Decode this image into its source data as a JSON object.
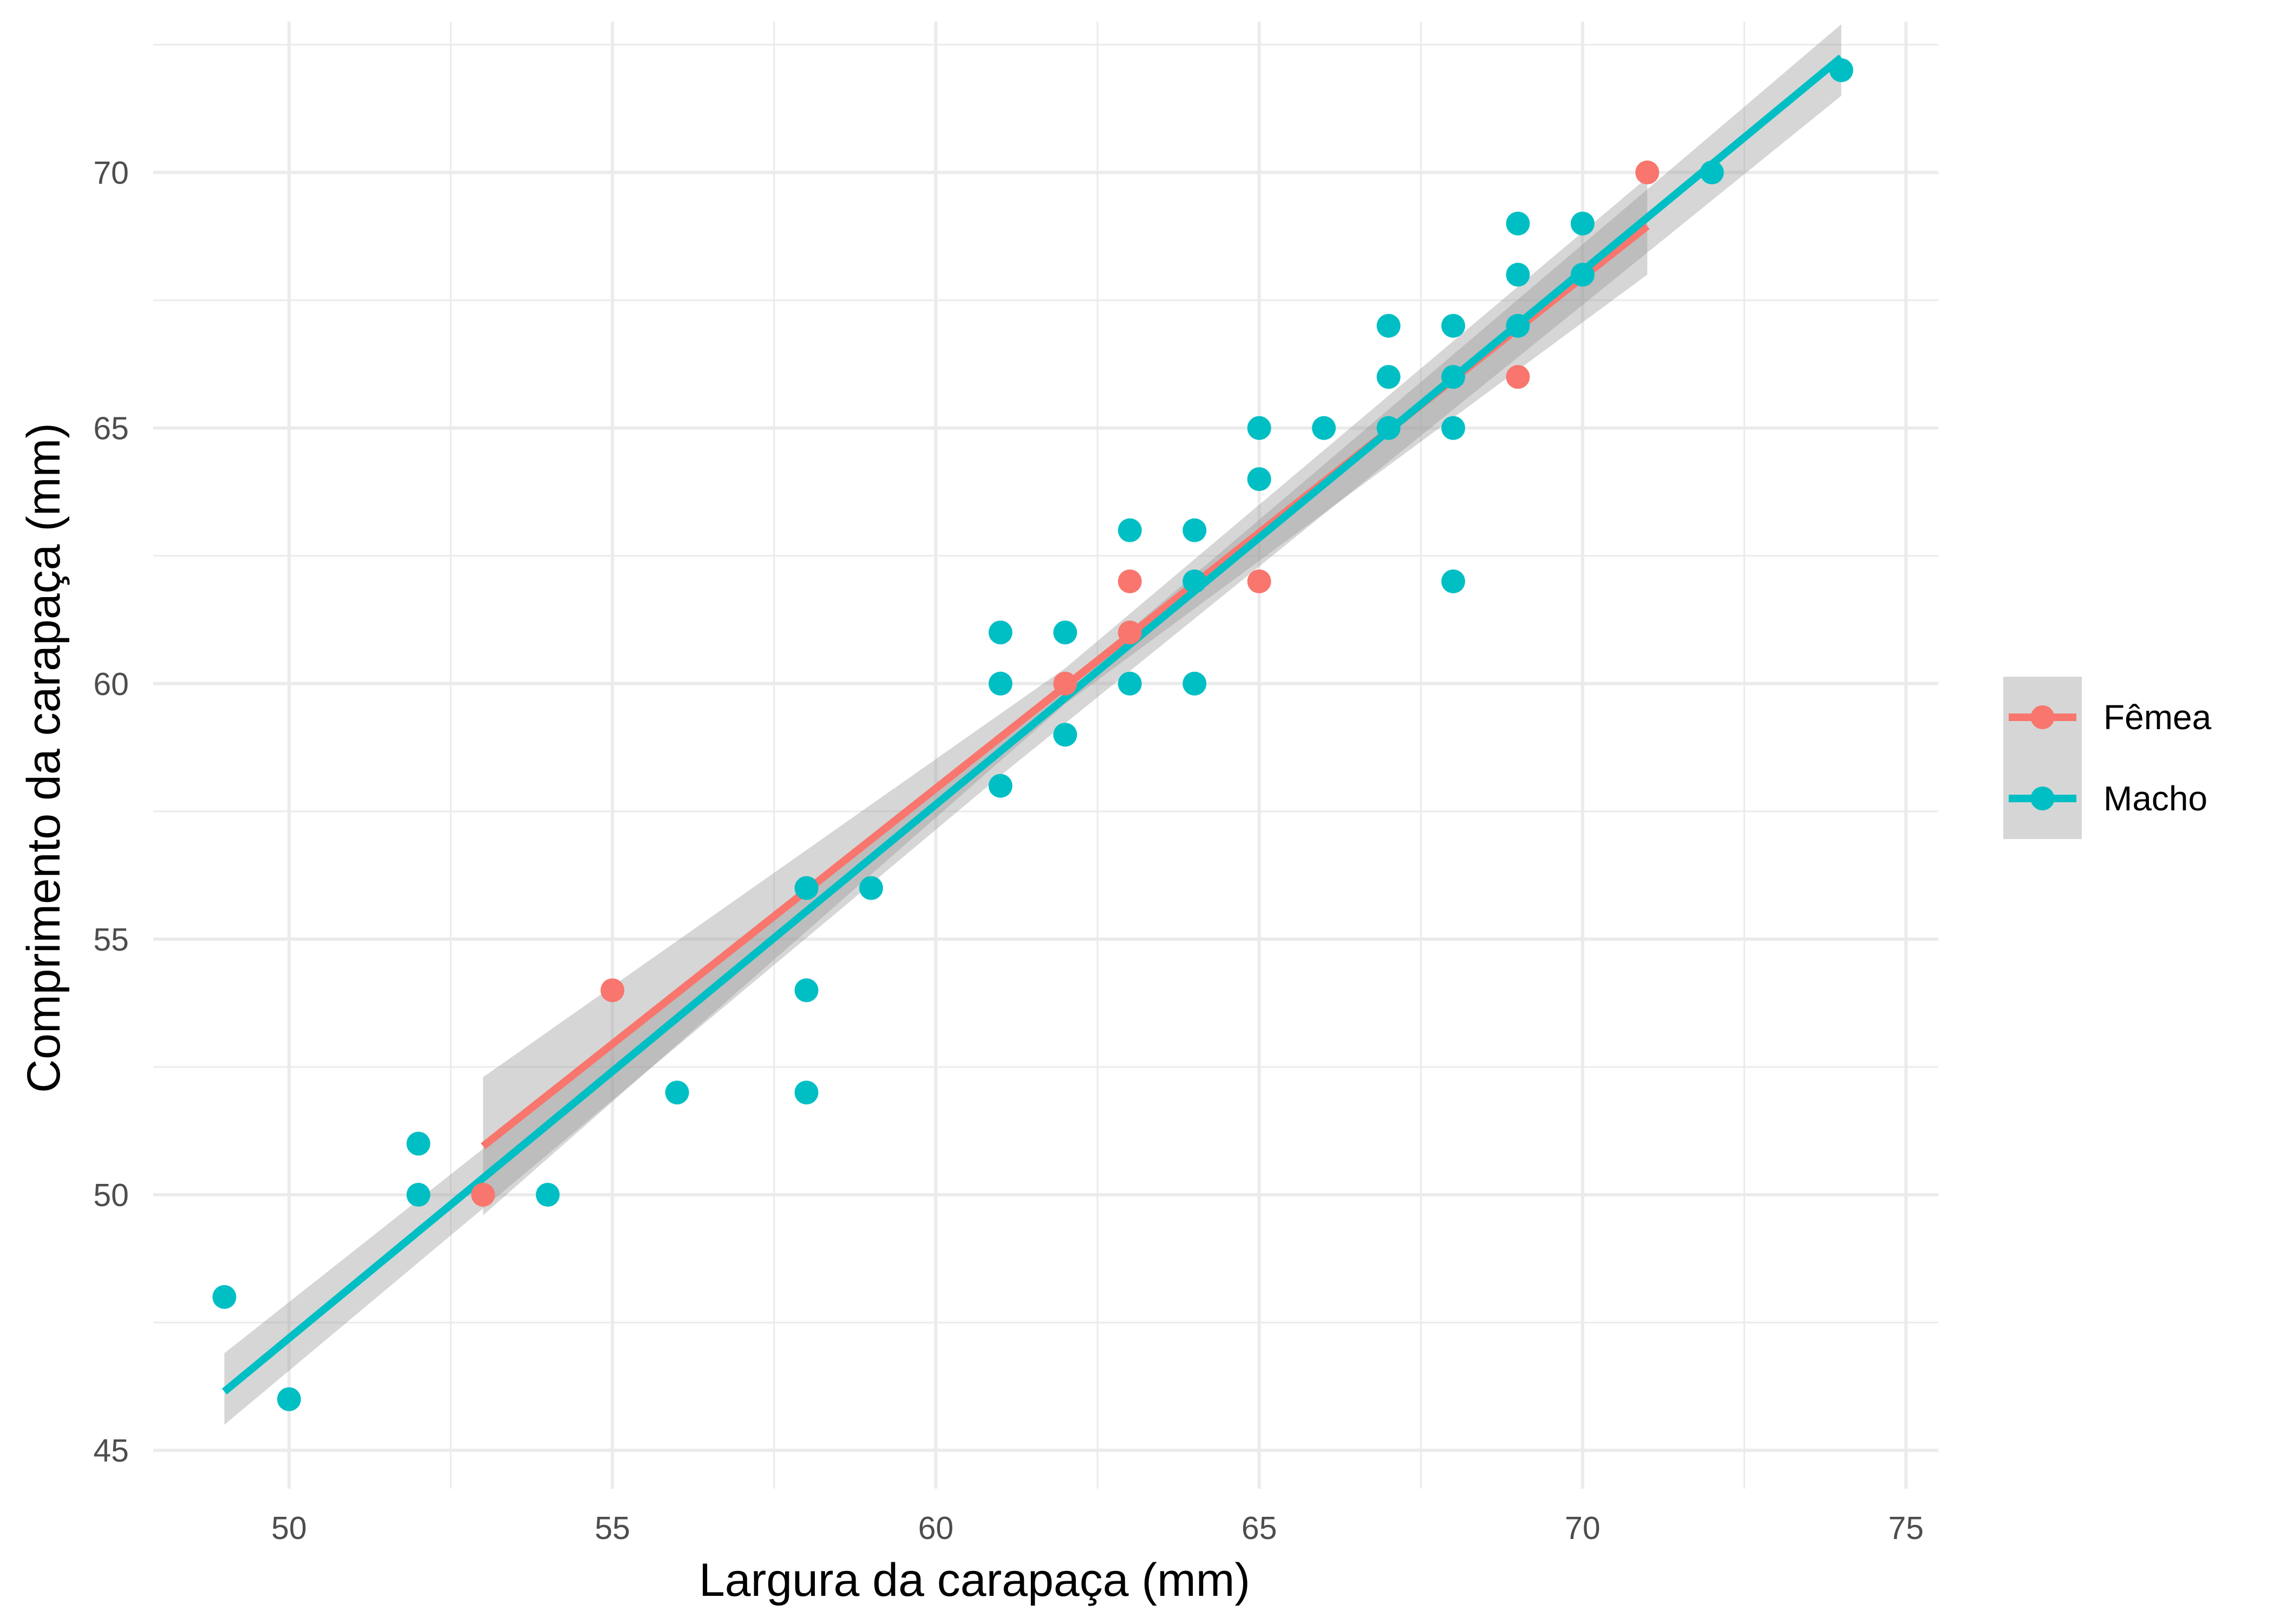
{
  "chart_data": {
    "type": "scatter",
    "xlabel": "Largura da carapaça (mm)",
    "ylabel": "Comprimento da carapaça (mm)",
    "xlim": [
      47.9,
      75.5
    ],
    "ylim": [
      44.25,
      72.95
    ],
    "x_ticks": [
      50,
      55,
      60,
      65,
      70,
      75
    ],
    "y_ticks": [
      45,
      50,
      55,
      60,
      65,
      70
    ],
    "grid": true,
    "legend_position": "right",
    "series": [
      {
        "name": "Fêmea",
        "color": "#F8766D",
        "points": [
          [
            53,
            50
          ],
          [
            55,
            54
          ],
          [
            62,
            60
          ],
          [
            63,
            62
          ],
          [
            63,
            61
          ],
          [
            65,
            62
          ],
          [
            69,
            66
          ],
          [
            71,
            70
          ]
        ],
        "fit": {
          "x_range": [
            53,
            71
          ],
          "y_range": [
            50.95,
            68.95
          ]
        },
        "ci_band": {
          "x": [
            53,
            62,
            71
          ],
          "lower": [
            49.6,
            59.6,
            68.0
          ],
          "upper": [
            52.3,
            60.3,
            69.9
          ]
        }
      },
      {
        "name": "Macho",
        "color": "#00BFC4",
        "points": [
          [
            49,
            48
          ],
          [
            50,
            46
          ],
          [
            52,
            51
          ],
          [
            52,
            50
          ],
          [
            54,
            50
          ],
          [
            56,
            52
          ],
          [
            58,
            56
          ],
          [
            58,
            54
          ],
          [
            58,
            52
          ],
          [
            59,
            56
          ],
          [
            61,
            61
          ],
          [
            61,
            60
          ],
          [
            61,
            58
          ],
          [
            62,
            61
          ],
          [
            62,
            59
          ],
          [
            63,
            63
          ],
          [
            63,
            60
          ],
          [
            64,
            63
          ],
          [
            64,
            62
          ],
          [
            64,
            60
          ],
          [
            65,
            65
          ],
          [
            65,
            64
          ],
          [
            66,
            65
          ],
          [
            67,
            67
          ],
          [
            67,
            66
          ],
          [
            67,
            65
          ],
          [
            68,
            67
          ],
          [
            68,
            66
          ],
          [
            68,
            65
          ],
          [
            68,
            62
          ],
          [
            69,
            69
          ],
          [
            69,
            68
          ],
          [
            69,
            67
          ],
          [
            70,
            69
          ],
          [
            70,
            68
          ],
          [
            72,
            70
          ],
          [
            74,
            72
          ]
        ],
        "fit": {
          "x_range": [
            49,
            74
          ],
          "y_range": [
            46.15,
            72.25
          ]
        },
        "ci_band": {
          "x": [
            49,
            61,
            74
          ],
          "lower": [
            45.5,
            58.2,
            71.5
          ],
          "upper": [
            46.9,
            58.9,
            72.9
          ]
        }
      }
    ],
    "band_color": "#999999"
  }
}
